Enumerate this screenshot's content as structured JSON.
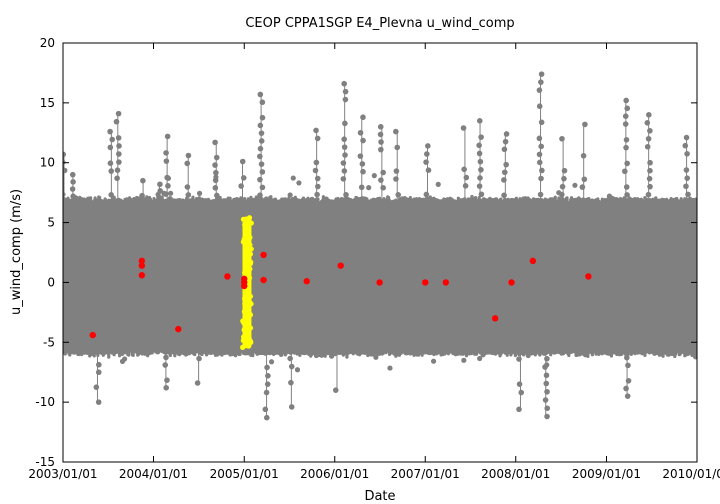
{
  "chart_data": {
    "type": "scatter",
    "title": "CEOP CPPA1SGP E4_Plevna  u_wind_comp",
    "xlabel": "Date",
    "ylabel": "u_wind_comp (m/s)",
    "xlim": [
      "2003/01/01",
      "2010/01/01"
    ],
    "ylim": [
      -15,
      20
    ],
    "x_tick_labels": [
      "2003/01/01",
      "2004/01/01",
      "2005/01/01",
      "2006/01/01",
      "2007/01/01",
      "2008/01/01",
      "2009/01/01",
      "2010/01/01"
    ],
    "y_ticks": [
      -15,
      -10,
      -5,
      0,
      5,
      10,
      15,
      20
    ],
    "grid": false,
    "legend": "none",
    "colors": {
      "main": "#808080",
      "highlight": "#ffff00",
      "points": "#ff0000",
      "frame": "#000000"
    },
    "series": [
      {
        "color": "#808080",
        "typical_range": [
          -6,
          7
        ],
        "peaks": [
          {
            "x": "2003/01/05",
            "y": 10.7
          },
          {
            "x": "2003/02/10",
            "y": 9.0
          },
          {
            "x": "2003/05/20",
            "y": -10.0
          },
          {
            "x": "2003/07/15",
            "y": 12.6
          },
          {
            "x": "2003/08/10",
            "y": 14.1
          },
          {
            "x": "2003/11/20",
            "y": 8.5
          },
          {
            "x": "2004/01/25",
            "y": 8.2
          },
          {
            "x": "2004/02/20",
            "y": -8.8
          },
          {
            "x": "2004/02/25",
            "y": 12.2
          },
          {
            "x": "2004/05/20",
            "y": 10.6
          },
          {
            "x": "2004/07/01",
            "y": -8.4
          },
          {
            "x": "2004/09/10",
            "y": 11.7
          },
          {
            "x": "2004/12/25",
            "y": 10.1
          },
          {
            "x": "2005/03/10",
            "y": 15.7
          },
          {
            "x": "2005/04/01",
            "y": -11.3
          },
          {
            "x": "2005/07/10",
            "y": -10.4
          },
          {
            "x": "2005/10/20",
            "y": 12.7
          },
          {
            "x": "2006/01/10",
            "y": -9.0
          },
          {
            "x": "2006/02/10",
            "y": 16.6
          },
          {
            "x": "2006/04/20",
            "y": 13.8
          },
          {
            "x": "2006/07/10",
            "y": 13.0
          },
          {
            "x": "2006/09/10",
            "y": 12.6
          },
          {
            "x": "2007/01/10",
            "y": 11.4
          },
          {
            "x": "2007/06/10",
            "y": 12.9
          },
          {
            "x": "2007/08/10",
            "y": 13.5
          },
          {
            "x": "2007/11/20",
            "y": 12.4
          },
          {
            "x": "2008/01/20",
            "y": -10.6
          },
          {
            "x": "2008/04/10",
            "y": 17.4
          },
          {
            "x": "2008/05/01",
            "y": -11.2
          },
          {
            "x": "2008/07/10",
            "y": 12.0
          },
          {
            "x": "2008/10/01",
            "y": 13.2
          },
          {
            "x": "2009/03/20",
            "y": 15.2
          },
          {
            "x": "2009/03/25",
            "y": -9.5
          },
          {
            "x": "2009/06/20",
            "y": 14.0
          },
          {
            "x": "2009/11/20",
            "y": 12.1
          }
        ]
      },
      {
        "color": "#ffff00",
        "x_range": [
          "2004/12/25",
          "2005/01/30"
        ],
        "y_range": [
          -5.5,
          5.5
        ]
      },
      {
        "color": "#ff0000",
        "points": [
          {
            "x": "2003/05/01",
            "y": -4.4
          },
          {
            "x": "2003/11/15",
            "y": 1.8
          },
          {
            "x": "2003/11/15",
            "y": 1.4
          },
          {
            "x": "2003/11/15",
            "y": 0.6
          },
          {
            "x": "2004/04/10",
            "y": -3.9
          },
          {
            "x": "2004/10/25",
            "y": 0.5
          },
          {
            "x": "2005/01/01",
            "y": 0.3
          },
          {
            "x": "2005/01/01",
            "y": 0.0
          },
          {
            "x": "2005/01/01",
            "y": -0.3
          },
          {
            "x": "2005/03/20",
            "y": 2.3
          },
          {
            "x": "2005/03/20",
            "y": 0.2
          },
          {
            "x": "2005/09/10",
            "y": 0.1
          },
          {
            "x": "2006/01/25",
            "y": 1.4
          },
          {
            "x": "2006/07/01",
            "y": 0.0
          },
          {
            "x": "2007/01/01",
            "y": 0.0
          },
          {
            "x": "2007/03/25",
            "y": 0.0
          },
          {
            "x": "2007/10/10",
            "y": -3.0
          },
          {
            "x": "2007/12/15",
            "y": 0.0
          },
          {
            "x": "2008/03/10",
            "y": 1.8
          },
          {
            "x": "2008/10/20",
            "y": 0.5
          }
        ]
      }
    ]
  }
}
